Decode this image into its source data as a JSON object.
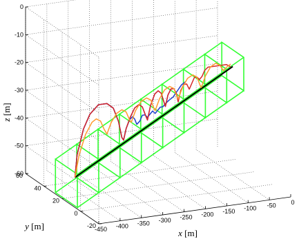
{
  "chart_data": {
    "type": "line3d",
    "title": "",
    "axes": {
      "x": {
        "label_var": "x",
        "label_unit": "[m]",
        "lim": [
          -450,
          0
        ],
        "ticks": [
          -450,
          -400,
          -350,
          -300,
          -250,
          -200,
          -150,
          -100,
          -50,
          0
        ]
      },
      "y": {
        "label_var": "y",
        "label_unit": "[m]",
        "lim": [
          -20,
          60
        ],
        "ticks": [
          -20,
          0,
          20,
          40,
          60
        ]
      },
      "z": {
        "label_var": "z",
        "label_unit": "[m]",
        "lim": [
          -60,
          0
        ],
        "ticks": [
          0,
          -10,
          -20,
          -30,
          -40,
          -50,
          -60
        ]
      },
      "grid": true
    },
    "path": {
      "color": "#000000",
      "points": [
        [
          -420,
          20,
          -53
        ],
        [
          -50,
          20,
          -21
        ]
      ]
    },
    "gates": {
      "color": "#33ff33",
      "half_width": 12,
      "half_height": 6,
      "x": [
        -440,
        -390,
        -340,
        -290,
        -240,
        -190,
        -140,
        -90,
        -50
      ]
    },
    "series": [
      {
        "color": "#7f2aa0",
        "points": [
          [
            -420,
            20,
            -53
          ],
          [
            -415,
            20,
            -45
          ],
          [
            -400,
            20,
            -36
          ],
          [
            -385,
            20,
            -31
          ],
          [
            -365,
            20,
            -28
          ],
          [
            -345,
            20,
            -28
          ],
          [
            -330,
            20,
            -30
          ],
          [
            -318,
            20,
            -35
          ],
          [
            -310,
            20,
            -41
          ],
          [
            -306,
            20,
            -42
          ],
          [
            -300,
            20,
            -38
          ],
          [
            -290,
            20,
            -34
          ],
          [
            -280,
            20,
            -31
          ],
          [
            -270,
            20,
            -30
          ],
          [
            -262,
            20,
            -31
          ],
          [
            -255,
            20,
            -34
          ],
          [
            -250,
            20,
            -36
          ],
          [
            -243,
            20,
            -31
          ],
          [
            -233,
            20,
            -27
          ],
          [
            -225,
            20,
            -26
          ],
          [
            -218,
            20,
            -27
          ],
          [
            -212,
            20,
            -30
          ],
          [
            -208,
            20,
            -32
          ],
          [
            -202,
            20,
            -28
          ],
          [
            -195,
            20,
            -26
          ],
          [
            -188,
            20,
            -26
          ],
          [
            -182,
            20,
            -28
          ],
          [
            -178,
            20,
            -31
          ]
        ]
      },
      {
        "color": "#1f3fcc",
        "points": [
          [
            -420,
            20,
            -53
          ],
          [
            -415,
            20,
            -45
          ],
          [
            -400,
            20,
            -36
          ],
          [
            -385,
            20,
            -31
          ],
          [
            -365,
            20,
            -28
          ],
          [
            -345,
            20,
            -28
          ],
          [
            -330,
            20,
            -30
          ],
          [
            -318,
            20,
            -35
          ],
          [
            -310,
            20,
            -41
          ],
          [
            -306,
            20,
            -42
          ],
          [
            -300,
            20,
            -38
          ],
          [
            -292,
            20,
            -35
          ],
          [
            -285,
            20,
            -34
          ],
          [
            -280,
            20,
            -35
          ],
          [
            -275,
            20,
            -37
          ],
          [
            -268,
            20,
            -36
          ],
          [
            -262,
            20,
            -34
          ],
          [
            -256,
            20,
            -34
          ],
          [
            -250,
            20,
            -35
          ],
          [
            -244,
            20,
            -34
          ],
          [
            -238,
            20,
            -33
          ],
          [
            -232,
            20,
            -34
          ],
          [
            -226,
            20,
            -33
          ],
          [
            -220,
            20,
            -32
          ],
          [
            -214,
            20,
            -32
          ],
          [
            -208,
            20,
            -31
          ],
          [
            -200,
            20,
            -30
          ],
          [
            -190,
            20,
            -29
          ],
          [
            -180,
            20,
            -27
          ],
          [
            -170,
            20,
            -25
          ],
          [
            -160,
            20,
            -24
          ]
        ]
      },
      {
        "color": "#d62728",
        "points": [
          [
            -420,
            20,
            -53
          ],
          [
            -415,
            20,
            -45
          ],
          [
            -400,
            20,
            -36
          ],
          [
            -385,
            20,
            -31
          ],
          [
            -365,
            20,
            -28
          ],
          [
            -345,
            20,
            -28
          ],
          [
            -330,
            20,
            -30
          ],
          [
            -318,
            20,
            -35
          ],
          [
            -310,
            20,
            -41
          ],
          [
            -306,
            20,
            -42
          ],
          [
            -300,
            20,
            -38
          ],
          [
            -290,
            20,
            -34
          ],
          [
            -280,
            20,
            -31
          ],
          [
            -270,
            20,
            -30
          ],
          [
            -262,
            20,
            -31
          ],
          [
            -255,
            20,
            -34
          ],
          [
            -250,
            20,
            -36
          ],
          [
            -243,
            20,
            -31
          ],
          [
            -233,
            20,
            -27
          ],
          [
            -225,
            20,
            -26
          ],
          [
            -218,
            20,
            -27
          ],
          [
            -212,
            20,
            -30
          ],
          [
            -208,
            20,
            -32
          ],
          [
            -202,
            20,
            -28
          ],
          [
            -195,
            20,
            -26
          ],
          [
            -188,
            20,
            -26
          ],
          [
            -182,
            20,
            -28
          ],
          [
            -178,
            20,
            -31
          ],
          [
            -172,
            20,
            -27
          ],
          [
            -165,
            20,
            -25
          ],
          [
            -158,
            20,
            -25
          ],
          [
            -152,
            20,
            -27
          ],
          [
            -146,
            20,
            -25
          ],
          [
            -140,
            20,
            -23
          ],
          [
            -134,
            20,
            -23
          ],
          [
            -128,
            20,
            -24
          ],
          [
            -122,
            20,
            -23
          ],
          [
            -116,
            20,
            -21
          ],
          [
            -108,
            20,
            -20
          ],
          [
            -95,
            20,
            -20
          ],
          [
            -80,
            20,
            -20
          ],
          [
            -65,
            20,
            -20
          ],
          [
            -55,
            20,
            -21
          ]
        ]
      },
      {
        "color": "#ff9a2e",
        "points": [
          [
            -420,
            20,
            -53
          ],
          [
            -410,
            20,
            -45
          ],
          [
            -395,
            20,
            -38
          ],
          [
            -380,
            20,
            -34
          ],
          [
            -370,
            20,
            -33
          ],
          [
            -360,
            20,
            -34
          ],
          [
            -352,
            20,
            -37
          ],
          [
            -345,
            20,
            -39
          ],
          [
            -335,
            20,
            -35
          ],
          [
            -322,
            20,
            -32
          ],
          [
            -310,
            20,
            -31
          ],
          [
            -300,
            20,
            -32
          ],
          [
            -292,
            20,
            -35
          ],
          [
            -288,
            20,
            -36
          ],
          [
            -278,
            20,
            -32
          ],
          [
            -265,
            20,
            -29
          ],
          [
            -252,
            20,
            -28
          ],
          [
            -242,
            20,
            -29
          ],
          [
            -235,
            20,
            -32
          ],
          [
            -232,
            20,
            -33
          ],
          [
            -222,
            20,
            -29
          ],
          [
            -210,
            20,
            -26
          ],
          [
            -198,
            20,
            -25
          ],
          [
            -188,
            20,
            -26
          ],
          [
            -181,
            20,
            -29
          ],
          [
            -178,
            20,
            -30
          ],
          [
            -168,
            20,
            -26
          ],
          [
            -156,
            20,
            -23
          ],
          [
            -144,
            20,
            -22
          ],
          [
            -134,
            20,
            -23
          ],
          [
            -127,
            20,
            -26
          ],
          [
            -124,
            20,
            -27
          ],
          [
            -114,
            20,
            -23
          ],
          [
            -102,
            20,
            -20
          ],
          [
            -90,
            20,
            -19
          ],
          [
            -80,
            20,
            -20
          ],
          [
            -72,
            20,
            -22
          ],
          [
            -65,
            20,
            -21
          ],
          [
            -55,
            20,
            -20
          ]
        ]
      }
    ]
  }
}
